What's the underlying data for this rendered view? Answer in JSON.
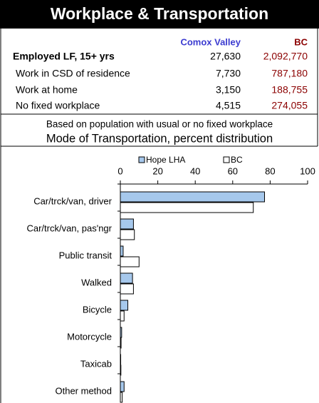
{
  "header": {
    "title": "Workplace & Transportation"
  },
  "table": {
    "columns": [
      "Comox Valley",
      "BC"
    ],
    "rows": [
      [
        "Employed LF, 15+ yrs",
        "27,630",
        "2,092,770"
      ],
      [
        "Work in CSD of residence",
        "7,730",
        "787,180"
      ],
      [
        "Work at home",
        "3,150",
        "188,755"
      ],
      [
        "No fixed workplace",
        "4,515",
        "274,055"
      ]
    ]
  },
  "note": "Based on population with usual or no fixed workplace",
  "chart_data": {
    "type": "bar",
    "orientation": "horizontal",
    "title": "Mode of Transportation, percent distribution",
    "categories": [
      "Car/trck/van, driver",
      "Car/trck/van, pas'ngr",
      "Public transit",
      "Walked",
      "Bicycle",
      "Motorcycle",
      "Taxicab",
      "Other method"
    ],
    "series": [
      {
        "name": "Hope LHA",
        "color": "#a6c8ec",
        "values": [
          77,
          7,
          1.5,
          6.5,
          4,
          0.7,
          0.2,
          2
        ]
      },
      {
        "name": "BC",
        "color": "#ffffff",
        "values": [
          71,
          7.5,
          10,
          7,
          2,
          0.4,
          0.3,
          1
        ]
      }
    ],
    "xlim": [
      0,
      100
    ],
    "xticks": [
      0,
      20,
      40,
      60,
      80,
      100
    ]
  }
}
